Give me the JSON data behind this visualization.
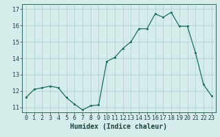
{
  "x": [
    0,
    1,
    2,
    3,
    4,
    5,
    6,
    7,
    8,
    9,
    10,
    11,
    12,
    13,
    14,
    15,
    16,
    17,
    18,
    19,
    20,
    21,
    22,
    23
  ],
  "y": [
    11.6,
    12.1,
    12.2,
    12.3,
    12.2,
    11.6,
    11.2,
    10.85,
    11.1,
    11.15,
    13.8,
    14.05,
    14.6,
    15.0,
    15.8,
    15.8,
    16.7,
    16.5,
    16.8,
    15.95,
    15.95,
    14.35,
    12.4,
    11.7
  ],
  "xlabel": "Humidex (Indice chaleur)",
  "xlim": [
    -0.5,
    23.5
  ],
  "ylim": [
    10.7,
    17.3
  ],
  "yticks": [
    11,
    12,
    13,
    14,
    15,
    16,
    17
  ],
  "xticks": [
    0,
    1,
    2,
    3,
    4,
    5,
    6,
    7,
    8,
    9,
    10,
    11,
    12,
    13,
    14,
    15,
    16,
    17,
    18,
    19,
    20,
    21,
    22,
    23
  ],
  "line_color": "#1a6b5a",
  "marker_color": "#1a6b5a",
  "bg_color": "#d5ecea",
  "grid_color": "#b8d8d5",
  "axis_color": "#2d6060",
  "tick_color": "#1a4040",
  "label_color": "#1a4040",
  "font_size_label": 7,
  "font_size_tick": 6
}
